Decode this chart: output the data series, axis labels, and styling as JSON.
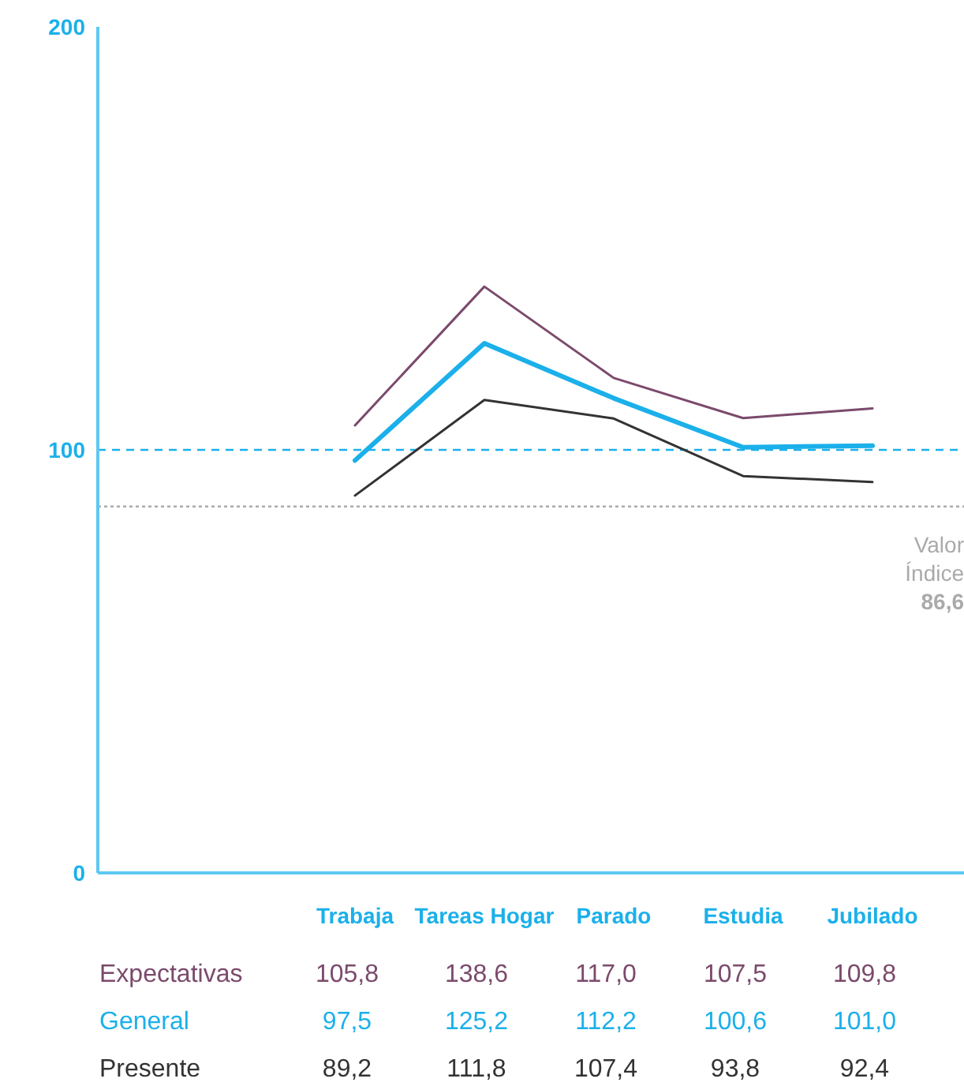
{
  "chart_data": {
    "type": "line",
    "categories": [
      "Trabaja",
      "Tareas Hogar",
      "Parado",
      "Estudia",
      "Jubilado"
    ],
    "series": [
      {
        "name": "Expectativas",
        "color": "#7b4a6c",
        "values": [
          105.8,
          138.6,
          117.0,
          107.5,
          109.8
        ],
        "value_labels": [
          "105,8",
          "138,6",
          "117,0",
          "107,5",
          "109,8"
        ]
      },
      {
        "name": "General",
        "color": "#1bb0ea",
        "values": [
          97.5,
          125.2,
          112.2,
          100.6,
          101.0
        ],
        "value_labels": [
          "97,5",
          "125,2",
          "112,2",
          "100,6",
          "101,0"
        ]
      },
      {
        "name": "Presente",
        "color": "#333333",
        "values": [
          89.2,
          111.8,
          107.4,
          93.8,
          92.4
        ],
        "value_labels": [
          "89,2",
          "111,8",
          "107,4",
          "93,8",
          "92,4"
        ]
      }
    ],
    "ylim": [
      0,
      200
    ],
    "yticks": [
      0,
      100,
      200
    ],
    "marker": "none",
    "line_style": "solid",
    "ref_lines": [
      {
        "axis": "y",
        "value": 100,
        "color": "#1bb0ea",
        "line_style": "dashed"
      },
      {
        "axis": "y",
        "value": 86.6,
        "label": "Valor Índice 86,6",
        "color": "#aaaaaa",
        "line_style": "dotted"
      }
    ]
  }
}
